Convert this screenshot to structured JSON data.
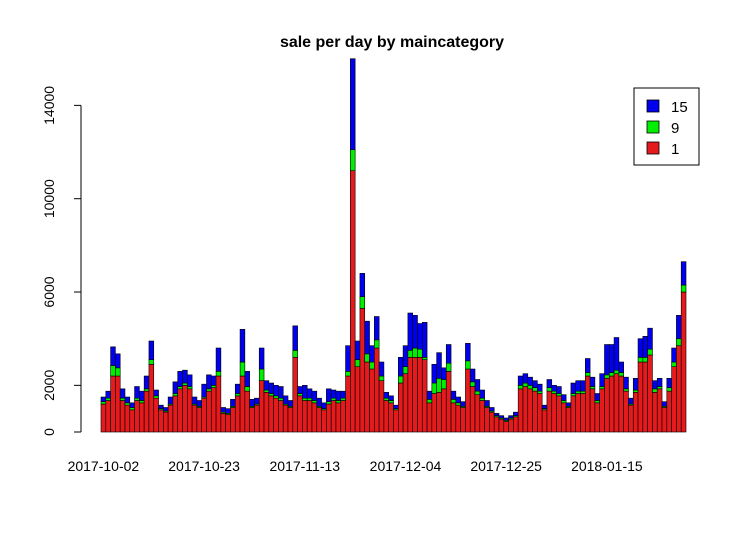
{
  "chart_data": {
    "type": "bar",
    "stacked": true,
    "title": "sale per day by maincategory",
    "xlabel": "",
    "ylabel": "",
    "ylim": [
      0,
      15000
    ],
    "y_ticks": [
      0,
      2000,
      6000,
      10000,
      14000
    ],
    "x_tick_labels": [
      {
        "index": 0,
        "label": "2017-10-02"
      },
      {
        "index": 21,
        "label": "2017-10-23"
      },
      {
        "index": 42,
        "label": "2017-11-13"
      },
      {
        "index": 63,
        "label": "2017-12-04"
      },
      {
        "index": 84,
        "label": "2017-12-25"
      },
      {
        "index": 105,
        "label": "2018-01-15"
      }
    ],
    "legend": {
      "position": "top-right"
    },
    "series": [
      {
        "name": "1",
        "color": "#e41a1c",
        "values": [
          1200,
          1350,
          2400,
          2400,
          1350,
          1150,
          950,
          1350,
          1250,
          1750,
          2900,
          1450,
          950,
          850,
          1150,
          1550,
          1850,
          2000,
          1850,
          1150,
          1050,
          1450,
          1750,
          1900,
          2400,
          800,
          750,
          1050,
          1550,
          2400,
          1750,
          1050,
          1150,
          2200,
          1700,
          1550,
          1450,
          1350,
          1150,
          1050,
          3200,
          1550,
          1350,
          1350,
          1250,
          1050,
          950,
          1200,
          1350,
          1250,
          1350,
          2400,
          11200,
          2800,
          5300,
          3000,
          2700,
          3600,
          2200,
          1350,
          1250,
          950,
          2100,
          2500,
          3200,
          3200,
          3200,
          3100,
          1250,
          1650,
          1700,
          1850,
          2600,
          1250,
          1150,
          1050,
          2700,
          1950,
          1600,
          1350,
          1050,
          850,
          650,
          550,
          450,
          550,
          650,
          1850,
          1950,
          1850,
          1750,
          1650,
          950,
          1750,
          1650,
          1550,
          1250,
          1050,
          1550,
          1650,
          1650,
          2400,
          1850,
          1250,
          1850,
          2300,
          2400,
          2500,
          2400,
          1750,
          1150,
          1700,
          3000,
          3000,
          3300,
          1700,
          1850,
          1050,
          1750,
          2800,
          3700,
          6000
        ]
      },
      {
        "name": "9",
        "color": "#00ee00",
        "values": [
          100,
          100,
          450,
          350,
          100,
          100,
          100,
          100,
          100,
          100,
          200,
          100,
          50,
          50,
          50,
          100,
          100,
          100,
          100,
          50,
          50,
          50,
          100,
          100,
          200,
          50,
          50,
          50,
          100,
          600,
          200,
          50,
          50,
          500,
          100,
          100,
          100,
          100,
          50,
          50,
          300,
          100,
          100,
          100,
          100,
          50,
          50,
          100,
          100,
          100,
          100,
          200,
          900,
          300,
          500,
          350,
          300,
          350,
          200,
          100,
          100,
          50,
          300,
          300,
          300,
          400,
          350,
          100,
          150,
          450,
          600,
          400,
          350,
          150,
          100,
          50,
          350,
          200,
          150,
          100,
          50,
          50,
          50,
          50,
          50,
          50,
          50,
          150,
          150,
          150,
          150,
          100,
          50,
          150,
          100,
          100,
          100,
          50,
          100,
          100,
          100,
          150,
          100,
          100,
          100,
          150,
          150,
          150,
          150,
          100,
          50,
          100,
          200,
          200,
          250,
          150,
          100,
          50,
          150,
          200,
          300,
          300
        ]
      },
      {
        "name": "15",
        "color": "#0000ee",
        "values": [
          200,
          300,
          800,
          600,
          400,
          250,
          200,
          500,
          400,
          550,
          800,
          250,
          150,
          150,
          300,
          500,
          650,
          550,
          500,
          300,
          250,
          550,
          600,
          400,
          1000,
          200,
          200,
          300,
          400,
          1400,
          650,
          300,
          250,
          900,
          400,
          450,
          450,
          500,
          350,
          250,
          1050,
          300,
          550,
          400,
          400,
          350,
          250,
          550,
          350,
          400,
          300,
          1100,
          3900,
          800,
          1000,
          1400,
          700,
          1000,
          600,
          250,
          200,
          150,
          800,
          900,
          1600,
          1400,
          1100,
          1500,
          350,
          800,
          1100,
          500,
          800,
          350,
          250,
          200,
          750,
          550,
          500,
          350,
          250,
          150,
          100,
          100,
          100,
          100,
          150,
          400,
          400,
          350,
          300,
          300,
          150,
          350,
          250,
          300,
          250,
          150,
          450,
          450,
          450,
          600,
          400,
          300,
          550,
          1300,
          1200,
          1400,
          450,
          500,
          250,
          500,
          800,
          900,
          900,
          350,
          350,
          200,
          400,
          600,
          1000,
          1000
        ]
      }
    ]
  }
}
